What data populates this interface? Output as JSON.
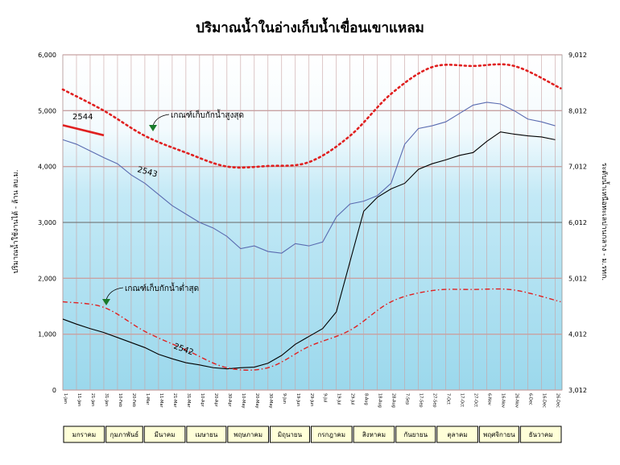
{
  "chart_data": {
    "type": "line",
    "title": "ปริมาณน้ำในอ่างเก็บน้ำเขื่อนเขาแหลม",
    "ylabel_left": "ปริมาณน้ำใช้งานได้ - ล้าน ลบ.ม.",
    "ylabel_right": "ระดับน้ำเหนือทะเลปานกลาง - ม.รทก.",
    "y_left_ticks": [
      "0",
      "1,000",
      "2,000",
      "3,000",
      "4,000",
      "5,000",
      "6,000"
    ],
    "y_right_ticks": [
      "3,012",
      "4,012",
      "5,012",
      "6,012",
      "7,012",
      "8,012",
      "9,012"
    ],
    "ylim": [
      0,
      6000
    ],
    "x_tick_labels": [
      "1-Jan",
      "11-Jan",
      "21-Jan",
      "31-Jan",
      "10-Feb",
      "20-Feb",
      "1-Mar",
      "11-Mar",
      "21-Mar",
      "31-Mar",
      "10-Apr",
      "20-Apr",
      "30-Apr",
      "10-May",
      "20-May",
      "30-May",
      "9-Jun",
      "19-Jun",
      "29-Jun",
      "9-Jul",
      "19-Jul",
      "29-Jul",
      "8-Aug",
      "18-Aug",
      "28-Aug",
      "7-Sep",
      "17-Sep",
      "27-Sep",
      "7-Oct",
      "17-Oct",
      "27-Oct",
      "6-Nov",
      "16-Nov",
      "26-Nov",
      "6-Dec",
      "16-Dec",
      "26-Dec"
    ],
    "months": [
      "มกราคม",
      "กุมภาพันธ์",
      "มีนาคม",
      "เมษายน",
      "พฤษภาคม",
      "มิถุนายน",
      "กรกฎาคม",
      "สิงหาคม",
      "กันยายน",
      "ตุลาคม",
      "พฤศจิกายน",
      "ธันวาคม"
    ],
    "x_days": [
      1,
      11,
      21,
      31,
      41,
      51,
      61,
      71,
      81,
      91,
      101,
      111,
      121,
      131,
      141,
      151,
      161,
      171,
      181,
      191,
      201,
      211,
      221,
      231,
      241,
      251,
      261,
      271,
      281,
      291,
      301,
      311,
      321,
      331,
      341,
      351,
      361
    ],
    "annotations": {
      "upper_rule": "เกณฑ์เก็บกักน้ำสูงสุด",
      "lower_rule": "เกณฑ์เก็บกักน้ำต่ำสุด",
      "label_2544": "2544",
      "label_2543": "2543",
      "label_2542": "2542"
    },
    "series": [
      {
        "name": "2543",
        "color": "#5a6bb0",
        "days": [
          1,
          11,
          21,
          31,
          41,
          51,
          61,
          71,
          81,
          91,
          101,
          111,
          121,
          131,
          141,
          151,
          161,
          171,
          181,
          191,
          201,
          211,
          221,
          231,
          241,
          251,
          261,
          271,
          281,
          291,
          301,
          311,
          321,
          331,
          341,
          351,
          361
        ],
        "values": [
          4480,
          4400,
          4280,
          4160,
          4050,
          3850,
          3700,
          3500,
          3300,
          3150,
          3000,
          2900,
          2750,
          2530,
          2580,
          2480,
          2450,
          2620,
          2580,
          2650,
          3100,
          3330,
          3380,
          3480,
          3700,
          4400,
          4680,
          4730,
          4800,
          4950,
          5100,
          5150,
          5120,
          5000,
          4850,
          4800,
          4730
        ]
      },
      {
        "name": "2542",
        "color": "#000000",
        "days": [
          1,
          11,
          21,
          31,
          41,
          51,
          61,
          71,
          81,
          91,
          101,
          111,
          121,
          131,
          141,
          151,
          161,
          171,
          181,
          191,
          201,
          211,
          221,
          231,
          241,
          251,
          261,
          271,
          281,
          291,
          301,
          311,
          321,
          331,
          341,
          351,
          361
        ],
        "values": [
          1270,
          1180,
          1100,
          1030,
          940,
          850,
          760,
          640,
          560,
          490,
          450,
          400,
          380,
          400,
          410,
          480,
          620,
          820,
          960,
          1100,
          1400,
          2300,
          3200,
          3450,
          3600,
          3700,
          3950,
          4050,
          4120,
          4200,
          4250,
          4450,
          4620,
          4580,
          4550,
          4530,
          4480
        ]
      },
      {
        "name": "2544",
        "color": "#e02020",
        "days": [
          1,
          11,
          21,
          31
        ],
        "values": [
          4740,
          4680,
          4620,
          4560
        ]
      },
      {
        "name": "เกณฑ์เก็บกักน้ำสูงสุด",
        "color": "#e02020",
        "style": "dotted",
        "days": [
          1,
          31,
          61,
          91,
          121,
          151,
          181,
          211,
          241,
          271,
          301,
          331,
          365
        ],
        "values": [
          5380,
          5000,
          4550,
          4250,
          4000,
          4010,
          4080,
          4550,
          5300,
          5780,
          5800,
          5800,
          5400
        ]
      },
      {
        "name": "เกณฑ์เก็บกักน้ำต่ำสุด",
        "color": "#e02020",
        "style": "dashdot",
        "days": [
          1,
          31,
          61,
          91,
          121,
          151,
          181,
          211,
          241,
          271,
          301,
          331,
          365
        ],
        "values": [
          1580,
          1480,
          1050,
          720,
          400,
          400,
          780,
          1070,
          1580,
          1780,
          1800,
          1790,
          1580
        ]
      }
    ],
    "colors": {
      "plot_top": "#ffffff",
      "plot_bottom": "#9ad8ec",
      "grid_major": "#c8a2a2",
      "grid_mid": "#666666",
      "grid_vert": "#c8a2a2"
    }
  }
}
